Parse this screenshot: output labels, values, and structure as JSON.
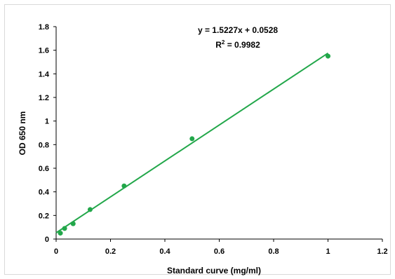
{
  "chart_data": {
    "type": "scatter",
    "title": "",
    "xlabel": "Standard curve (mg/ml)",
    "ylabel": "OD 650 nm",
    "xlim": [
      0,
      1.2
    ],
    "ylim": [
      0,
      1.8
    ],
    "xticks": [
      "0",
      "0.2",
      "0.4",
      "0.6",
      "0.8",
      "1",
      "1.2"
    ],
    "yticks": [
      "0",
      "0.2",
      "0.4",
      "0.6",
      "0.8",
      "1",
      "1.2",
      "1.4",
      "1.6",
      "1.8"
    ],
    "x_tick_values": [
      0,
      0.2,
      0.4,
      0.6,
      0.8,
      1.0,
      1.2
    ],
    "y_tick_values": [
      0,
      0.2,
      0.4,
      0.6,
      0.8,
      1.0,
      1.2,
      1.4,
      1.6,
      1.8
    ],
    "grid": false,
    "series": [
      {
        "x": [
          0.0156,
          0.03125,
          0.0625,
          0.125,
          0.25,
          0.5,
          1.0
        ],
        "y": [
          0.05,
          0.09,
          0.13,
          0.25,
          0.45,
          0.85,
          1.55
        ]
      }
    ],
    "trendline": {
      "slope": 1.5227,
      "intercept": 0.0528,
      "x_range": [
        0,
        1.0
      ]
    },
    "annotations": {
      "equation": "y = 1.5227x + 0.0528",
      "r2_prefix": "R",
      "r2_sup": "2",
      "r2_suffix": " = 0.9982"
    },
    "colors": {
      "series": "#22a74a",
      "axis": "#000000"
    }
  }
}
